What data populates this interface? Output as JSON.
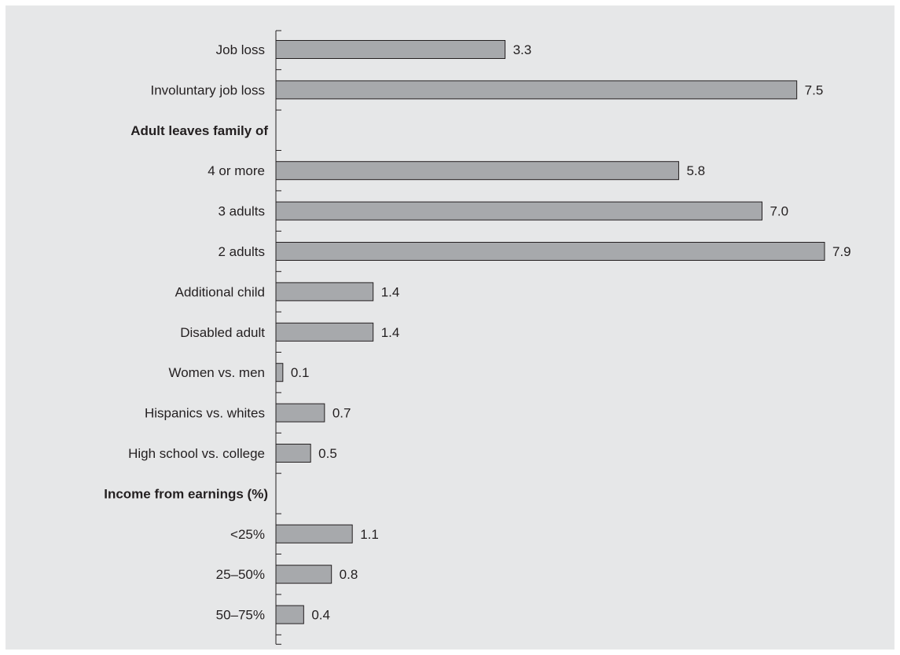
{
  "chart_data": {
    "type": "bar",
    "orientation": "horizontal",
    "title": "",
    "xlabel": "",
    "ylabel": "",
    "xlim": [
      0,
      8
    ],
    "grid": false,
    "categories": [
      "Job loss",
      "Involuntary job loss",
      "Adult leaves family of",
      "4 or more",
      "3 adults",
      "2 adults",
      "Additional child",
      "Disabled adult",
      "Women vs. men",
      "Hispanics vs. whites",
      "High school vs. college",
      "Income from earnings (%)",
      "<25%",
      "25–50%",
      "50–75%"
    ],
    "headers": [
      "Adult leaves family of",
      "Income from earnings (%)"
    ],
    "values": [
      3.3,
      7.5,
      null,
      5.8,
      7.0,
      7.9,
      1.4,
      1.4,
      0.1,
      0.7,
      0.5,
      null,
      1.1,
      0.8,
      0.4
    ],
    "value_labels": [
      "3.3",
      "7.5",
      "",
      "5.8",
      "7.0",
      "7.9",
      "1.4",
      "1.4",
      "0.1",
      "0.7",
      "0.5",
      "",
      "1.1",
      "0.8",
      "0.4"
    ]
  },
  "colors": {
    "panel_background": "#e6e7e8",
    "bar_fill": "#a7a9ac",
    "bar_stroke": "#231f20",
    "text": "#231f20"
  }
}
